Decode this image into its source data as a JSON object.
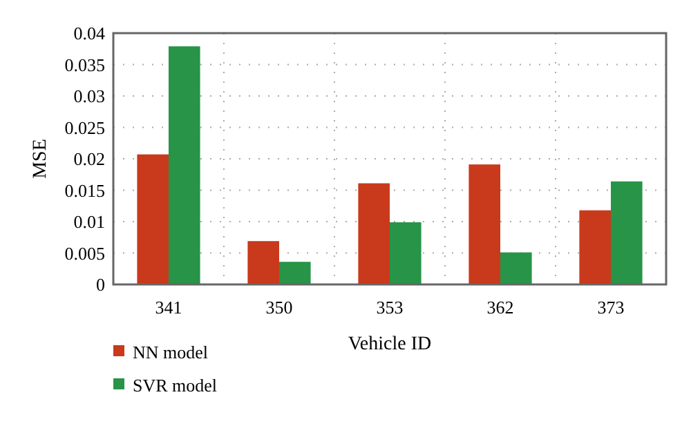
{
  "chart_data": {
    "type": "bar",
    "xlabel": "Vehicle ID",
    "ylabel": "MSE",
    "categories": [
      "341",
      "350",
      "353",
      "362",
      "373"
    ],
    "series": [
      {
        "name": "NN model",
        "color": "#c9391b",
        "values": [
          0.0207,
          0.0069,
          0.0161,
          0.0191,
          0.0118
        ]
      },
      {
        "name": "SVR model",
        "color": "#279447",
        "values": [
          0.0379,
          0.0036,
          0.0099,
          0.0051,
          0.0164
        ]
      }
    ],
    "ylim": [
      0,
      0.04
    ],
    "yticks": [
      0,
      0.005,
      0.01,
      0.015,
      0.02,
      0.025,
      0.03,
      0.035,
      0.04
    ],
    "grid": true,
    "legend": "bottom left"
  }
}
